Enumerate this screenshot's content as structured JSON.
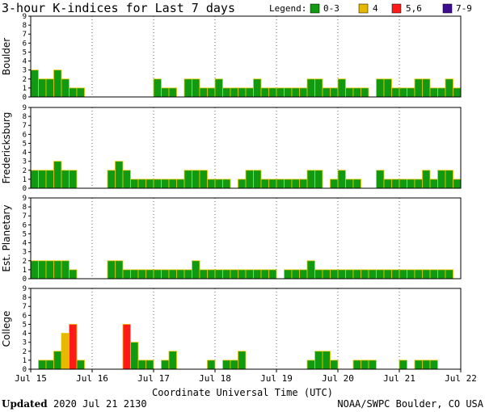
{
  "chart_data": {
    "type": "bar",
    "title": "3-hour K-indices for Last 7 days",
    "legend": {
      "label": "Legend:",
      "placement": "top-right",
      "entries": [
        {
          "label": "0-3",
          "color": "#119911"
        },
        {
          "label": "4",
          "color": "#e6b800"
        },
        {
          "label": "5,6",
          "color": "#ff1a1a"
        },
        {
          "label": "7-9",
          "color": "#3d0f8f"
        }
      ]
    },
    "xlabel": "Coordinate Universal Time (UTC)",
    "x_ticks": [
      "Jul 15",
      "Jul 16",
      "Jul 17",
      "Jul 18",
      "Jul 19",
      "Jul 20",
      "Jul 21",
      "Jul 22"
    ],
    "ylim": [
      0,
      9
    ],
    "y_ticks": [
      "0",
      "1",
      "2",
      "3",
      "4",
      "5",
      "6",
      "7",
      "8",
      "9"
    ],
    "grid": "dotted",
    "panels": [
      {
        "name": "Boulder",
        "values": [
          3,
          2,
          2,
          3,
          2,
          1,
          1,
          0,
          0,
          0,
          0,
          0,
          0,
          0,
          0,
          0,
          2,
          1,
          1,
          0,
          2,
          2,
          1,
          1,
          2,
          1,
          1,
          1,
          1,
          2,
          1,
          1,
          1,
          1,
          1,
          1,
          2,
          2,
          1,
          1,
          2,
          1,
          1,
          1,
          0,
          2,
          2,
          1,
          1,
          1,
          2,
          2,
          1,
          1,
          2,
          1,
          0
        ]
      },
      {
        "name": "Fredericksburg",
        "values": [
          2,
          2,
          2,
          3,
          2,
          2,
          0,
          0,
          0,
          0,
          2,
          3,
          2,
          1,
          1,
          1,
          1,
          1,
          1,
          1,
          2,
          2,
          2,
          1,
          1,
          1,
          0,
          1,
          2,
          2,
          1,
          1,
          1,
          1,
          1,
          1,
          2,
          2,
          0,
          1,
          2,
          1,
          1,
          0,
          0,
          2,
          1,
          1,
          1,
          1,
          1,
          2,
          1,
          2,
          2,
          1,
          0
        ]
      },
      {
        "name": "Est. Planetary",
        "values": [
          2,
          2,
          2,
          2,
          2,
          1,
          0,
          0,
          0,
          0,
          2,
          2,
          1,
          1,
          1,
          1,
          1,
          1,
          1,
          1,
          1,
          2,
          1,
          1,
          1,
          1,
          1,
          1,
          1,
          1,
          1,
          1,
          0,
          1,
          1,
          1,
          2,
          1,
          1,
          1,
          1,
          1,
          1,
          1,
          1,
          1,
          1,
          1,
          1,
          1,
          1,
          1,
          1,
          1,
          1,
          0,
          0
        ]
      },
      {
        "name": "College",
        "values": [
          0,
          1,
          1,
          2,
          4,
          5,
          1,
          0,
          0,
          0,
          0,
          0,
          5,
          3,
          1,
          1,
          0,
          1,
          2,
          0,
          0,
          0,
          0,
          1,
          0,
          1,
          1,
          2,
          0,
          0,
          0,
          0,
          0,
          0,
          0,
          0,
          1,
          2,
          2,
          1,
          0,
          0,
          1,
          1,
          1,
          0,
          0,
          0,
          1,
          0,
          1,
          1,
          1,
          0,
          0,
          0,
          0
        ]
      }
    ]
  },
  "footer": {
    "updated_label": "Updated",
    "updated_value": "2020 Jul 21 2130",
    "credit": "NOAA/SWPC Boulder, CO USA"
  }
}
